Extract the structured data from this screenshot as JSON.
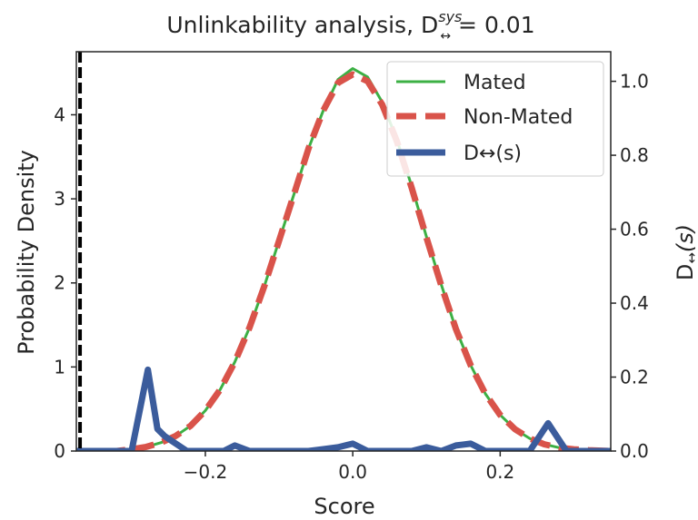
{
  "chart_data": {
    "type": "line",
    "title": "Unlinkability analysis, D",
    "title_sup": "sys",
    "title_sub": "↔",
    "title_suffix": " = 0.01",
    "xlabel": "Score",
    "ylabel_left": "Probability Density",
    "ylabel_right_main": "D",
    "ylabel_right_sub": "↔",
    "ylabel_right_suffix": "(s)",
    "xlim": [
      -0.375,
      0.35
    ],
    "ylim_left": [
      0,
      4.75
    ],
    "ylim_right": [
      0,
      1.08
    ],
    "xticks": [
      -0.2,
      0.0,
      0.2
    ],
    "xtick_labels": [
      "−0.2",
      "0.0",
      "0.2"
    ],
    "yticks_left": [
      0,
      1,
      2,
      3,
      4
    ],
    "yticks_left_labels": [
      "0",
      "1",
      "2",
      "3",
      "4"
    ],
    "yticks_right": [
      0.0,
      0.2,
      0.4,
      0.6,
      0.8,
      1.0
    ],
    "yticks_right_labels": [
      "0.0",
      "0.2",
      "0.4",
      "0.6",
      "0.8",
      "1.0"
    ],
    "grid": false,
    "legend_position": "top-right",
    "vline_x": -0.37,
    "series": [
      {
        "name": "Mated",
        "axis": "left",
        "color": "#3cb044",
        "style": "solid",
        "x": [
          -0.375,
          -0.35,
          -0.32,
          -0.3,
          -0.28,
          -0.26,
          -0.24,
          -0.22,
          -0.2,
          -0.18,
          -0.16,
          -0.14,
          -0.12,
          -0.1,
          -0.08,
          -0.06,
          -0.04,
          -0.02,
          0.0,
          0.02,
          0.04,
          0.06,
          0.08,
          0.1,
          0.12,
          0.14,
          0.16,
          0.18,
          0.2,
          0.22,
          0.24,
          0.26,
          0.28,
          0.3,
          0.32,
          0.35
        ],
        "values": [
          0.0,
          0.0,
          0.0,
          0.02,
          0.05,
          0.1,
          0.18,
          0.3,
          0.48,
          0.73,
          1.06,
          1.47,
          1.96,
          2.5,
          3.05,
          3.6,
          4.05,
          4.42,
          4.55,
          4.45,
          4.15,
          3.7,
          3.15,
          2.55,
          1.98,
          1.45,
          1.02,
          0.68,
          0.43,
          0.26,
          0.15,
          0.08,
          0.04,
          0.02,
          0.01,
          0.0
        ]
      },
      {
        "name": "Non-Mated",
        "axis": "left",
        "color": "#d9534a",
        "style": "dashed",
        "x": [
          -0.375,
          -0.35,
          -0.32,
          -0.3,
          -0.28,
          -0.26,
          -0.24,
          -0.22,
          -0.2,
          -0.18,
          -0.16,
          -0.14,
          -0.12,
          -0.1,
          -0.08,
          -0.06,
          -0.04,
          -0.02,
          0.0,
          0.02,
          0.04,
          0.06,
          0.08,
          0.1,
          0.12,
          0.14,
          0.16,
          0.18,
          0.2,
          0.22,
          0.24,
          0.26,
          0.28,
          0.3,
          0.32,
          0.35
        ],
        "values": [
          0.0,
          0.0,
          0.0,
          0.02,
          0.05,
          0.1,
          0.18,
          0.3,
          0.48,
          0.73,
          1.06,
          1.47,
          1.96,
          2.5,
          3.05,
          3.6,
          4.05,
          4.38,
          4.48,
          4.4,
          4.12,
          3.68,
          3.13,
          2.54,
          1.97,
          1.45,
          1.02,
          0.68,
          0.43,
          0.26,
          0.15,
          0.08,
          0.04,
          0.02,
          0.01,
          0.0
        ]
      },
      {
        "name": "D↔(s)",
        "axis": "right",
        "color": "#3b5c9c",
        "style": "solid",
        "x": [
          -0.375,
          -0.3,
          -0.278,
          -0.265,
          -0.255,
          -0.24,
          -0.225,
          -0.2,
          -0.175,
          -0.16,
          -0.14,
          -0.12,
          -0.1,
          -0.08,
          -0.06,
          -0.04,
          -0.02,
          0.0,
          0.02,
          0.04,
          0.06,
          0.08,
          0.1,
          0.12,
          0.14,
          0.16,
          0.18,
          0.2,
          0.22,
          0.24,
          0.265,
          0.29,
          0.35
        ],
        "values": [
          0.0,
          0.0,
          0.22,
          0.06,
          0.04,
          0.02,
          0.0,
          0.0,
          0.0,
          0.015,
          0.0,
          0.0,
          0.0,
          0.0,
          0.0,
          0.005,
          0.01,
          0.02,
          0.0,
          0.0,
          0.0,
          0.0,
          0.01,
          0.0,
          0.015,
          0.02,
          0.0,
          0.0,
          0.0,
          0.0,
          0.075,
          0.0,
          0.0
        ]
      }
    ]
  }
}
